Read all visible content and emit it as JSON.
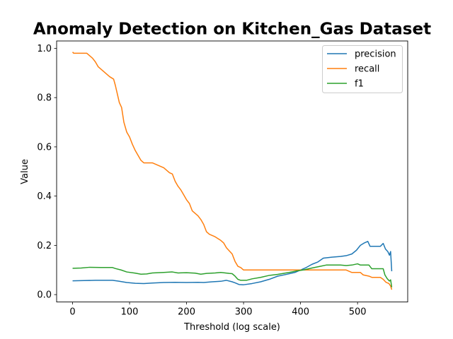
{
  "chart_data": {
    "type": "line",
    "title": "Anomaly Detection on Kitchen_Gas Dataset",
    "xlabel": "Threshold (log scale)",
    "ylabel": "Value",
    "xlim": [
      -28,
      588
    ],
    "ylim": [
      -0.03,
      1.03
    ],
    "x_ticks": [
      0,
      100,
      200,
      300,
      400,
      500
    ],
    "y_ticks": [
      0.0,
      0.2,
      0.4,
      0.6,
      0.8,
      1.0
    ],
    "grid": false,
    "legend_position": "top-right",
    "series": [
      {
        "name": "precision",
        "color": "#1f77b4",
        "points": [
          [
            0,
            0.056
          ],
          [
            20,
            0.057
          ],
          [
            40,
            0.058
          ],
          [
            70,
            0.058
          ],
          [
            80,
            0.055
          ],
          [
            95,
            0.049
          ],
          [
            110,
            0.046
          ],
          [
            125,
            0.045
          ],
          [
            140,
            0.047
          ],
          [
            160,
            0.049
          ],
          [
            180,
            0.05
          ],
          [
            200,
            0.049
          ],
          [
            220,
            0.05
          ],
          [
            230,
            0.049
          ],
          [
            245,
            0.052
          ],
          [
            260,
            0.054
          ],
          [
            270,
            0.058
          ],
          [
            280,
            0.052
          ],
          [
            285,
            0.048
          ],
          [
            292,
            0.041
          ],
          [
            300,
            0.04
          ],
          [
            315,
            0.045
          ],
          [
            330,
            0.052
          ],
          [
            345,
            0.062
          ],
          [
            360,
            0.075
          ],
          [
            375,
            0.082
          ],
          [
            390,
            0.09
          ],
          [
            400,
            0.1
          ],
          [
            410,
            0.11
          ],
          [
            420,
            0.123
          ],
          [
            430,
            0.132
          ],
          [
            440,
            0.148
          ],
          [
            455,
            0.152
          ],
          [
            470,
            0.155
          ],
          [
            480,
            0.158
          ],
          [
            490,
            0.165
          ],
          [
            498,
            0.18
          ],
          [
            505,
            0.2
          ],
          [
            512,
            0.21
          ],
          [
            518,
            0.216
          ],
          [
            522,
            0.196
          ],
          [
            530,
            0.196
          ],
          [
            540,
            0.196
          ],
          [
            545,
            0.208
          ],
          [
            549,
            0.185
          ],
          [
            553,
            0.175
          ],
          [
            556,
            0.16
          ],
          [
            558,
            0.175
          ],
          [
            560,
            0.095
          ]
        ]
      },
      {
        "name": "recall",
        "color": "#ff7f0e",
        "points": [
          [
            0,
            0.985
          ],
          [
            2,
            0.98
          ],
          [
            25,
            0.98
          ],
          [
            30,
            0.97
          ],
          [
            35,
            0.96
          ],
          [
            40,
            0.945
          ],
          [
            45,
            0.925
          ],
          [
            50,
            0.915
          ],
          [
            55,
            0.905
          ],
          [
            60,
            0.895
          ],
          [
            65,
            0.885
          ],
          [
            72,
            0.875
          ],
          [
            75,
            0.85
          ],
          [
            78,
            0.82
          ],
          [
            82,
            0.78
          ],
          [
            86,
            0.76
          ],
          [
            90,
            0.7
          ],
          [
            95,
            0.66
          ],
          [
            100,
            0.64
          ],
          [
            105,
            0.61
          ],
          [
            110,
            0.585
          ],
          [
            115,
            0.565
          ],
          [
            120,
            0.545
          ],
          [
            125,
            0.535
          ],
          [
            140,
            0.535
          ],
          [
            150,
            0.525
          ],
          [
            160,
            0.515
          ],
          [
            165,
            0.505
          ],
          [
            170,
            0.495
          ],
          [
            175,
            0.49
          ],
          [
            180,
            0.46
          ],
          [
            185,
            0.44
          ],
          [
            190,
            0.425
          ],
          [
            195,
            0.405
          ],
          [
            200,
            0.385
          ],
          [
            205,
            0.37
          ],
          [
            210,
            0.34
          ],
          [
            215,
            0.33
          ],
          [
            220,
            0.32
          ],
          [
            225,
            0.305
          ],
          [
            230,
            0.285
          ],
          [
            235,
            0.255
          ],
          [
            240,
            0.245
          ],
          [
            250,
            0.235
          ],
          [
            260,
            0.22
          ],
          [
            265,
            0.21
          ],
          [
            270,
            0.19
          ],
          [
            280,
            0.165
          ],
          [
            285,
            0.135
          ],
          [
            290,
            0.115
          ],
          [
            295,
            0.11
          ],
          [
            300,
            0.1
          ],
          [
            480,
            0.1
          ],
          [
            485,
            0.095
          ],
          [
            490,
            0.09
          ],
          [
            505,
            0.09
          ],
          [
            510,
            0.08
          ],
          [
            520,
            0.075
          ],
          [
            525,
            0.07
          ],
          [
            540,
            0.07
          ],
          [
            545,
            0.062
          ],
          [
            550,
            0.05
          ],
          [
            555,
            0.045
          ],
          [
            558,
            0.035
          ],
          [
            560,
            0.02
          ]
        ]
      },
      {
        "name": "f1",
        "color": "#2ca02c",
        "points": [
          [
            0,
            0.107
          ],
          [
            15,
            0.108
          ],
          [
            30,
            0.111
          ],
          [
            50,
            0.11
          ],
          [
            70,
            0.11
          ],
          [
            75,
            0.106
          ],
          [
            85,
            0.1
          ],
          [
            95,
            0.092
          ],
          [
            110,
            0.087
          ],
          [
            120,
            0.083
          ],
          [
            130,
            0.084
          ],
          [
            140,
            0.088
          ],
          [
            160,
            0.09
          ],
          [
            175,
            0.092
          ],
          [
            185,
            0.088
          ],
          [
            200,
            0.089
          ],
          [
            215,
            0.087
          ],
          [
            225,
            0.083
          ],
          [
            235,
            0.086
          ],
          [
            250,
            0.088
          ],
          [
            260,
            0.09
          ],
          [
            275,
            0.086
          ],
          [
            280,
            0.085
          ],
          [
            285,
            0.075
          ],
          [
            290,
            0.062
          ],
          [
            295,
            0.058
          ],
          [
            305,
            0.058
          ],
          [
            315,
            0.064
          ],
          [
            330,
            0.07
          ],
          [
            345,
            0.078
          ],
          [
            360,
            0.082
          ],
          [
            380,
            0.09
          ],
          [
            395,
            0.097
          ],
          [
            405,
            0.1
          ],
          [
            420,
            0.108
          ],
          [
            435,
            0.115
          ],
          [
            445,
            0.12
          ],
          [
            470,
            0.12
          ],
          [
            480,
            0.118
          ],
          [
            490,
            0.12
          ],
          [
            500,
            0.125
          ],
          [
            505,
            0.12
          ],
          [
            520,
            0.12
          ],
          [
            525,
            0.105
          ],
          [
            545,
            0.105
          ],
          [
            548,
            0.08
          ],
          [
            552,
            0.065
          ],
          [
            556,
            0.055
          ],
          [
            558,
            0.06
          ],
          [
            560,
            0.03
          ]
        ]
      }
    ]
  }
}
